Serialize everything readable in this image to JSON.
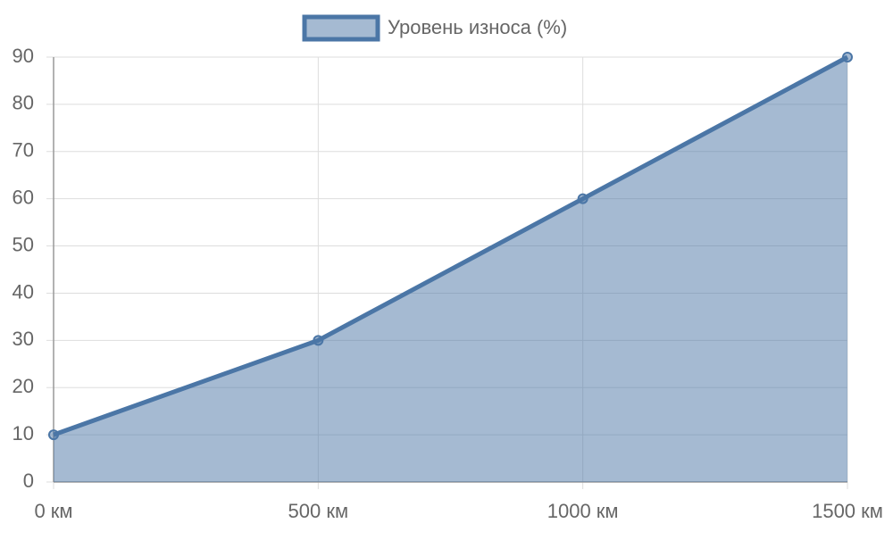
{
  "chart_data": {
    "type": "area",
    "categories": [
      "0 км",
      "500 км",
      "1000 км",
      "1500 км"
    ],
    "series": [
      {
        "name": "Уровень износа (%)",
        "color": "#4b76a6",
        "values": [
          10,
          30,
          60,
          90
        ]
      }
    ],
    "ylim": [
      0,
      90
    ],
    "yticks": [
      0,
      10,
      20,
      30,
      40,
      50,
      60,
      70,
      80,
      90
    ],
    "grid": true,
    "legend": "top"
  }
}
